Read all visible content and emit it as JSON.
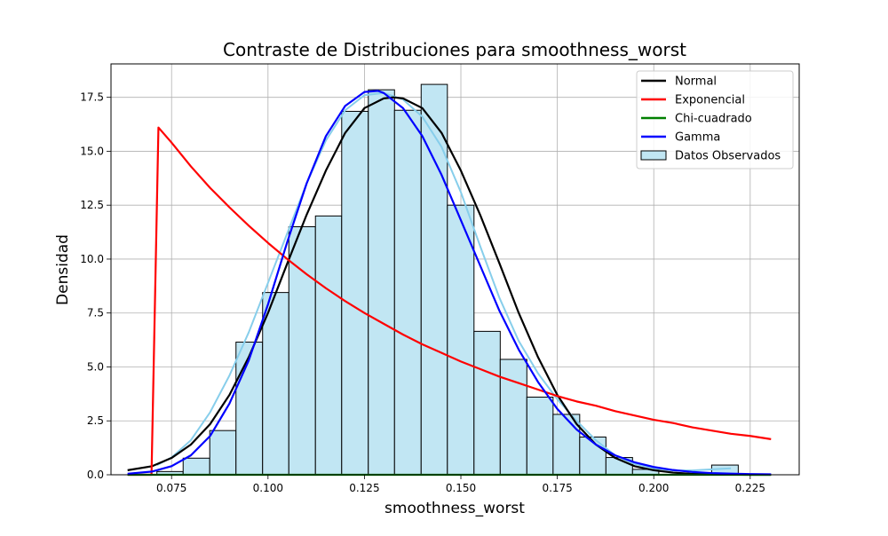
{
  "chart_data": {
    "type": "bar",
    "title": "Contraste de Distribuciones para smoothness_worst",
    "xlabel": "smoothness_worst",
    "ylabel": "Densidad",
    "xlim": [
      0.0593,
      0.2377
    ],
    "ylim": [
      0,
      19.05
    ],
    "grid": true,
    "legend_position": "top-right",
    "x_ticks": [
      0.075,
      0.1,
      0.125,
      0.15,
      0.175,
      0.2,
      0.225
    ],
    "x_tick_labels": [
      "0.075",
      "0.100",
      "0.125",
      "0.150",
      "0.175",
      "0.200",
      "0.225"
    ],
    "y_ticks": [
      0,
      2.5,
      5,
      7.5,
      10,
      12.5,
      15,
      17.5
    ],
    "y_tick_labels": [
      "0.0",
      "2.5",
      "5.0",
      "7.5",
      "10.0",
      "12.5",
      "15.0",
      "17.5"
    ],
    "histogram": {
      "name": "Datos Observados",
      "color": "#c1e6f3",
      "edge_color": "#000000",
      "kde_color": "#87ceeb",
      "bin_edges": [
        0.0712,
        0.078,
        0.0849,
        0.0917,
        0.0986,
        0.1054,
        0.1123,
        0.1191,
        0.126,
        0.1328,
        0.1397,
        0.1465,
        0.1534,
        0.1602,
        0.1671,
        0.1739,
        0.1808,
        0.1876,
        0.1945,
        0.2013,
        0.2082,
        0.215,
        0.2219
      ],
      "densities": [
        0.15,
        0.77,
        2.05,
        6.15,
        8.45,
        11.5,
        12.0,
        16.85,
        17.85,
        16.9,
        18.1,
        12.5,
        6.65,
        5.35,
        3.6,
        2.8,
        1.75,
        0.8,
        0.25,
        0,
        0,
        0.45
      ]
    },
    "series": [
      {
        "name": "Normal",
        "color": "#000000",
        "x": [
          0.0636,
          0.07,
          0.075,
          0.08,
          0.085,
          0.09,
          0.095,
          0.1,
          0.105,
          0.11,
          0.115,
          0.12,
          0.125,
          0.13,
          0.1325,
          0.135,
          0.14,
          0.145,
          0.15,
          0.155,
          0.16,
          0.165,
          0.17,
          0.175,
          0.18,
          0.185,
          0.19,
          0.195,
          0.2,
          0.205,
          0.21,
          0.215,
          0.22,
          0.225,
          0.2304
        ],
        "y": [
          0.21,
          0.4,
          0.78,
          1.4,
          2.35,
          3.7,
          5.45,
          7.5,
          9.8,
          12.05,
          14.1,
          15.85,
          17.0,
          17.45,
          17.5,
          17.45,
          17.0,
          15.85,
          14.1,
          12.05,
          9.8,
          7.5,
          5.45,
          3.7,
          2.35,
          1.4,
          0.78,
          0.4,
          0.21,
          0.1,
          0.04,
          0.02,
          0.01,
          0.0,
          0.0
        ]
      },
      {
        "name": "Exponencial",
        "color": "#ff0000",
        "x": [
          0.0636,
          0.0698,
          0.0716,
          0.075,
          0.08,
          0.085,
          0.09,
          0.095,
          0.1,
          0.105,
          0.11,
          0.115,
          0.12,
          0.125,
          0.13,
          0.135,
          0.14,
          0.145,
          0.15,
          0.155,
          0.16,
          0.165,
          0.17,
          0.175,
          0.18,
          0.185,
          0.19,
          0.195,
          0.2,
          0.205,
          0.21,
          0.215,
          0.22,
          0.225,
          0.2304
        ],
        "y": [
          0,
          0,
          16.1,
          15.4,
          14.3,
          13.3,
          12.4,
          11.55,
          10.75,
          10.0,
          9.3,
          8.65,
          8.05,
          7.5,
          7.0,
          6.5,
          6.05,
          5.65,
          5.25,
          4.9,
          4.55,
          4.25,
          3.95,
          3.65,
          3.4,
          3.2,
          2.95,
          2.75,
          2.55,
          2.4,
          2.2,
          2.05,
          1.9,
          1.8,
          1.65
        ]
      },
      {
        "name": "Chi-cuadrado",
        "color": "#008000",
        "x": [
          0.0636,
          0.2304
        ],
        "y": [
          0,
          0
        ]
      },
      {
        "name": "Gamma",
        "color": "#0000ff",
        "x": [
          0.0636,
          0.07,
          0.075,
          0.08,
          0.085,
          0.09,
          0.095,
          0.1,
          0.105,
          0.11,
          0.115,
          0.12,
          0.125,
          0.1285,
          0.13,
          0.135,
          0.14,
          0.145,
          0.15,
          0.155,
          0.16,
          0.165,
          0.17,
          0.175,
          0.18,
          0.185,
          0.19,
          0.195,
          0.2,
          0.205,
          0.21,
          0.215,
          0.22,
          0.225,
          0.2304
        ],
        "y": [
          0.05,
          0.15,
          0.4,
          0.9,
          1.8,
          3.3,
          5.3,
          7.9,
          10.8,
          13.5,
          15.7,
          17.1,
          17.75,
          17.8,
          17.7,
          17.0,
          15.7,
          13.9,
          11.8,
          9.7,
          7.6,
          5.8,
          4.3,
          3.05,
          2.1,
          1.4,
          0.9,
          0.58,
          0.36,
          0.22,
          0.13,
          0.08,
          0.05,
          0.03,
          0.02
        ]
      }
    ],
    "kde": {
      "x": [
        0.0712,
        0.075,
        0.08,
        0.085,
        0.09,
        0.095,
        0.1,
        0.105,
        0.11,
        0.115,
        0.12,
        0.125,
        0.13,
        0.135,
        0.14,
        0.145,
        0.15,
        0.155,
        0.16,
        0.165,
        0.17,
        0.175,
        0.18,
        0.185,
        0.19,
        0.195,
        0.2,
        0.205,
        0.21,
        0.215,
        0.22
      ],
      "y": [
        0.45,
        0.8,
        1.6,
        2.9,
        4.6,
        6.6,
        8.9,
        11.2,
        13.5,
        15.5,
        16.9,
        17.6,
        17.7,
        17.4,
        16.6,
        15.2,
        13.1,
        10.6,
        8.2,
        6.2,
        4.7,
        3.5,
        2.5,
        1.6,
        0.9,
        0.5,
        0.3,
        0.2,
        0.2,
        0.25,
        0.3
      ]
    }
  }
}
